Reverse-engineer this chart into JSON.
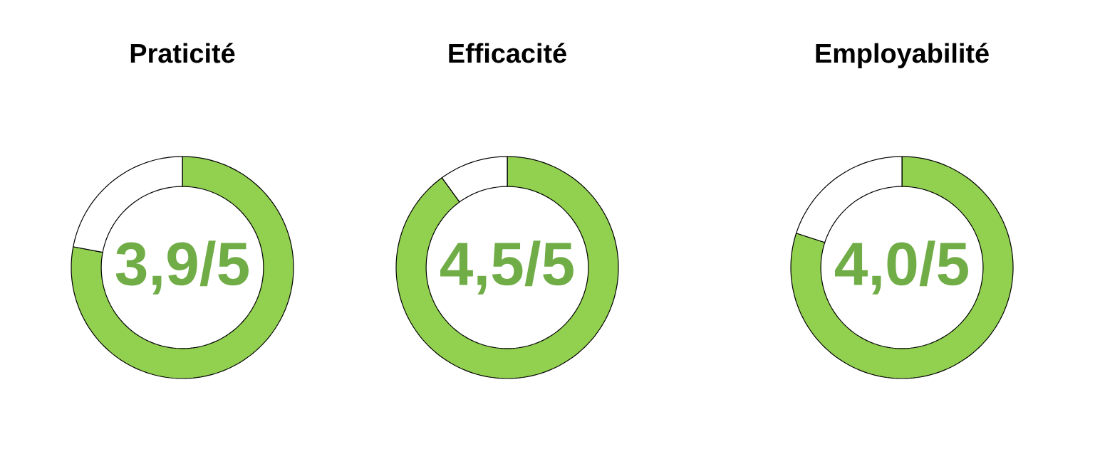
{
  "chart_data": [
    {
      "type": "donut",
      "title": "Praticité",
      "categories": [
        null,
        null
      ],
      "values": [
        78,
        22
      ],
      "colors": [
        "#92d050",
        "#ffffff"
      ],
      "annotations": [
        "3,9/5"
      ]
    },
    {
      "type": "donut",
      "title": "Efficacité",
      "categories": [
        null,
        null
      ],
      "values": [
        90,
        10
      ],
      "colors": [
        "#92d050",
        "#ffffff"
      ],
      "annotations": [
        "4,5/5"
      ]
    },
    {
      "type": "donut",
      "title": "Employabilité",
      "categories": [
        null,
        null
      ],
      "values": [
        80,
        20
      ],
      "colors": [
        "#92d050",
        "#ffffff"
      ],
      "annotations": [
        "4,0/5"
      ]
    }
  ]
}
